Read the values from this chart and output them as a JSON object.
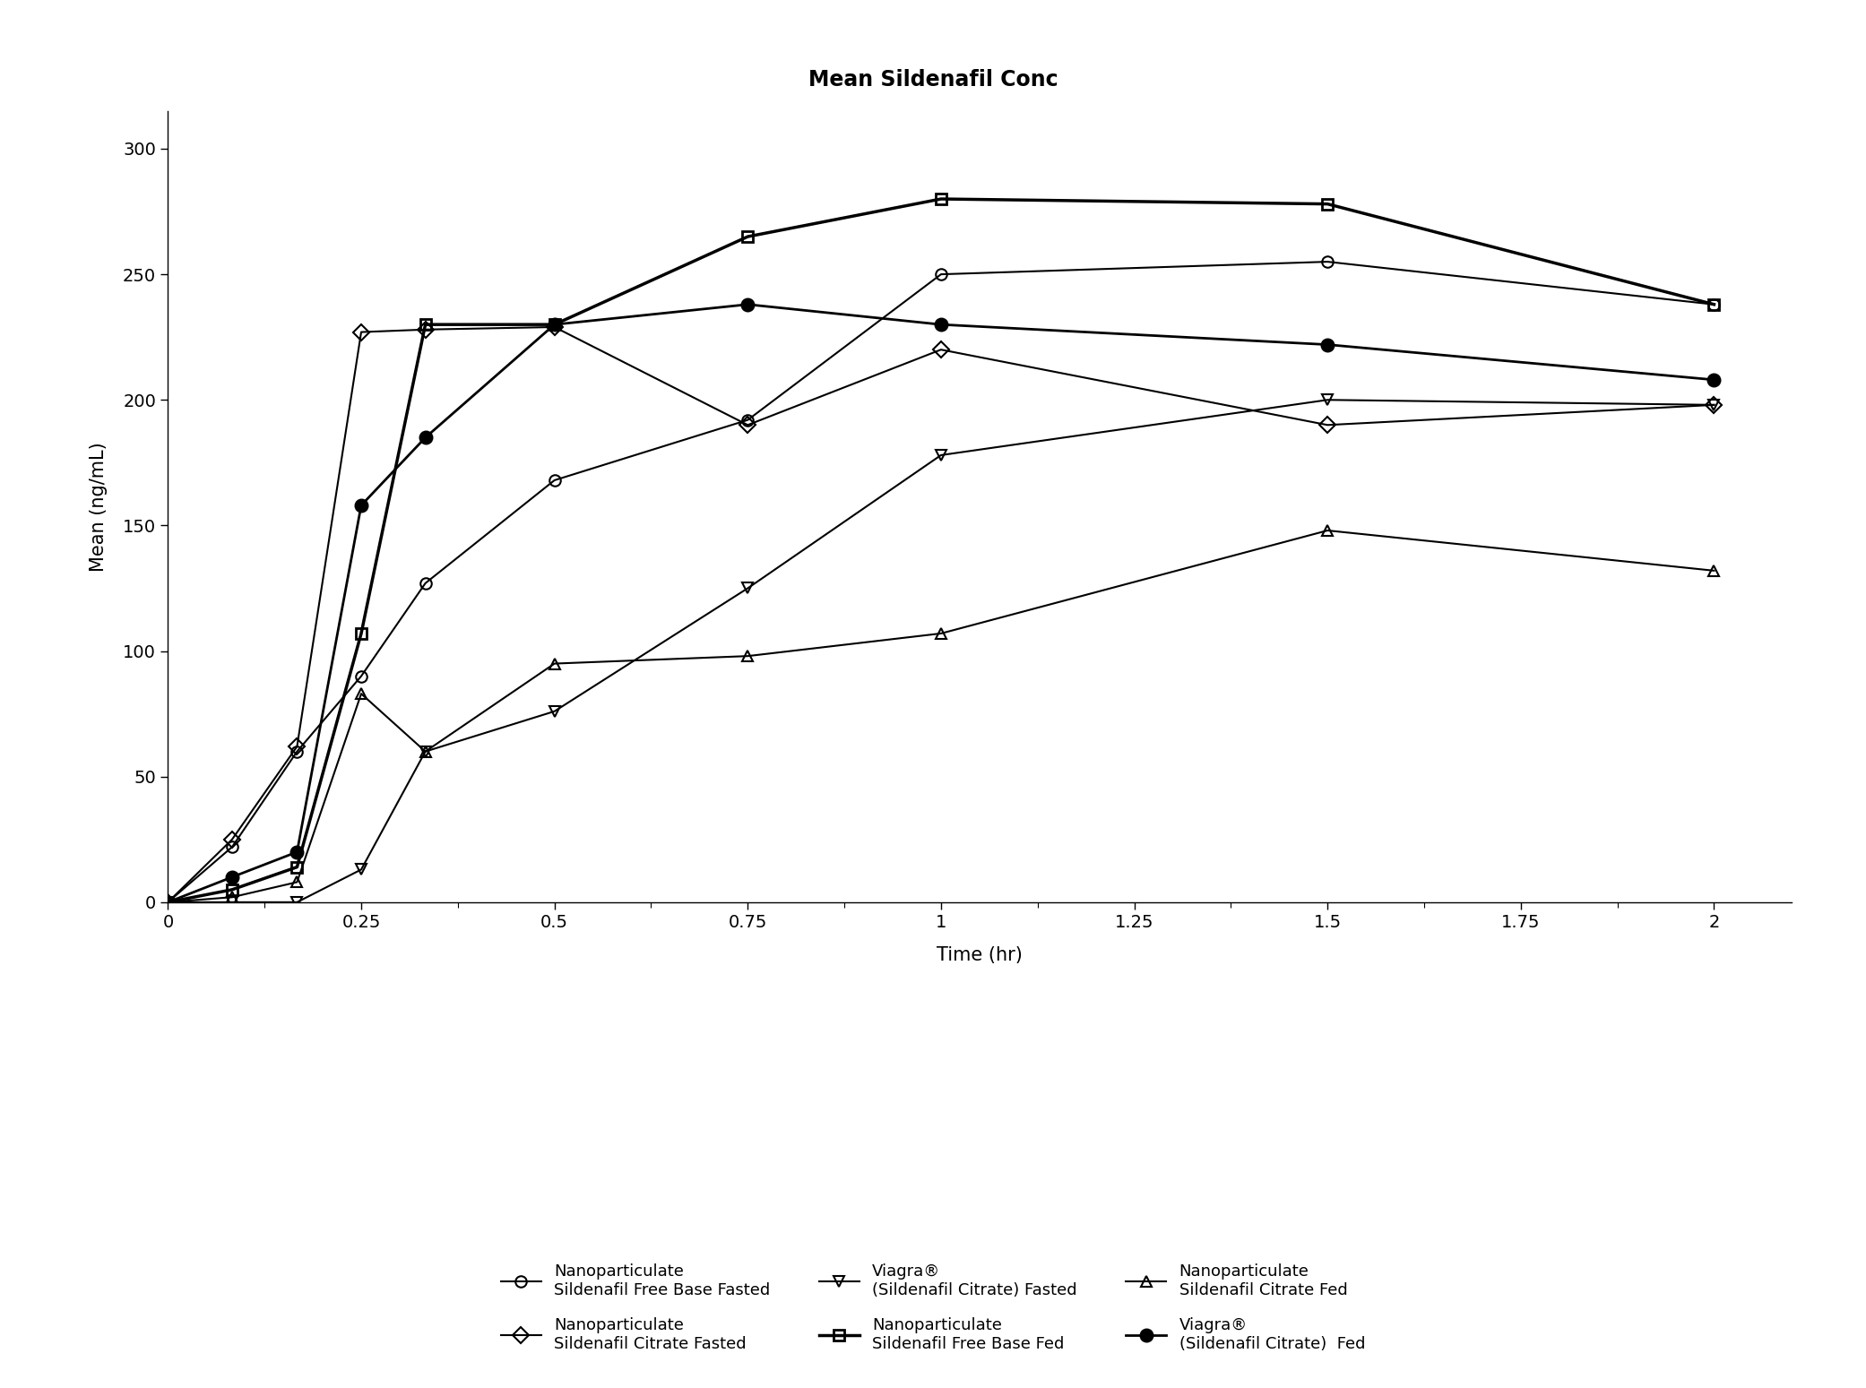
{
  "title": "Mean Sildenafil Conc",
  "xlabel": "Time (hr)",
  "ylabel": "Mean (ng/mL)",
  "xlim": [
    0,
    2.1
  ],
  "ylim": [
    0,
    315
  ],
  "xticks": [
    0,
    0.25,
    0.5,
    0.75,
    1.0,
    1.25,
    1.5,
    1.75,
    2.0
  ],
  "xtick_labels": [
    "0",
    "0.25",
    "0.5",
    "0.75",
    "1",
    "1.25",
    "1.5",
    "1.75",
    "2"
  ],
  "yticks": [
    0,
    50,
    100,
    150,
    200,
    250,
    300
  ],
  "ytick_labels": [
    "0",
    "50",
    "100",
    "150",
    "200",
    "250",
    "300"
  ],
  "series": [
    {
      "label": "Nanoparticulate\nSildenafil Free Base Fasted",
      "marker": "o",
      "fillstyle": "none",
      "linewidth": 1.5,
      "markersize": 9,
      "mew": 1.5,
      "color": "#000000",
      "x": [
        0,
        0.083,
        0.167,
        0.25,
        0.333,
        0.5,
        0.75,
        1.0,
        1.5,
        2.0
      ],
      "y": [
        0,
        22,
        60,
        90,
        127,
        168,
        192,
        250,
        255,
        238
      ]
    },
    {
      "label": "Nanoparticulate\nSildenafil Free Base Fed",
      "marker": "s",
      "fillstyle": "none",
      "linewidth": 2.5,
      "markersize": 9,
      "mew": 2.0,
      "color": "#000000",
      "x": [
        0,
        0.083,
        0.167,
        0.25,
        0.333,
        0.5,
        0.75,
        1.0,
        1.5,
        2.0
      ],
      "y": [
        0,
        5,
        14,
        107,
        230,
        230,
        265,
        280,
        278,
        238
      ]
    },
    {
      "label": "Nanoparticulate\nSildenafil Citrate Fasted",
      "marker": "D",
      "fillstyle": "none",
      "linewidth": 1.5,
      "markersize": 9,
      "mew": 1.5,
      "color": "#000000",
      "x": [
        0,
        0.083,
        0.167,
        0.25,
        0.333,
        0.5,
        0.75,
        1.0,
        1.5,
        2.0
      ],
      "y": [
        0,
        25,
        62,
        227,
        228,
        229,
        190,
        220,
        190,
        198
      ]
    },
    {
      "label": "Nanoparticulate\nSildenafil Citrate Fed",
      "marker": "^",
      "fillstyle": "none",
      "linewidth": 1.5,
      "markersize": 9,
      "mew": 1.5,
      "color": "#000000",
      "x": [
        0,
        0.083,
        0.167,
        0.25,
        0.333,
        0.5,
        0.75,
        1.0,
        1.5,
        2.0
      ],
      "y": [
        0,
        2,
        8,
        83,
        60,
        95,
        98,
        107,
        148,
        132
      ]
    },
    {
      "label": "Viagra®\n(Sildenafil Citrate) Fasted",
      "marker": "v",
      "fillstyle": "none",
      "linewidth": 1.5,
      "markersize": 9,
      "mew": 1.5,
      "color": "#000000",
      "x": [
        0,
        0.083,
        0.167,
        0.25,
        0.333,
        0.5,
        0.75,
        1.0,
        1.5,
        2.0
      ],
      "y": [
        0,
        0,
        0,
        13,
        60,
        76,
        125,
        178,
        200,
        198
      ]
    },
    {
      "label": "Viagra®\n(Sildenafil Citrate)  Fed",
      "marker": "o",
      "fillstyle": "full",
      "linewidth": 2.0,
      "markersize": 10,
      "mew": 1.5,
      "color": "#000000",
      "x": [
        0,
        0.083,
        0.167,
        0.25,
        0.333,
        0.5,
        0.75,
        1.0,
        1.5,
        2.0
      ],
      "y": [
        0,
        10,
        20,
        158,
        185,
        230,
        238,
        230,
        222,
        208
      ]
    }
  ],
  "background_color": "#ffffff",
  "title_fontsize": 17,
  "label_fontsize": 15,
  "tick_fontsize": 14,
  "legend_fontsize": 13,
  "legend_order": [
    0,
    2,
    4,
    1,
    3,
    5
  ]
}
